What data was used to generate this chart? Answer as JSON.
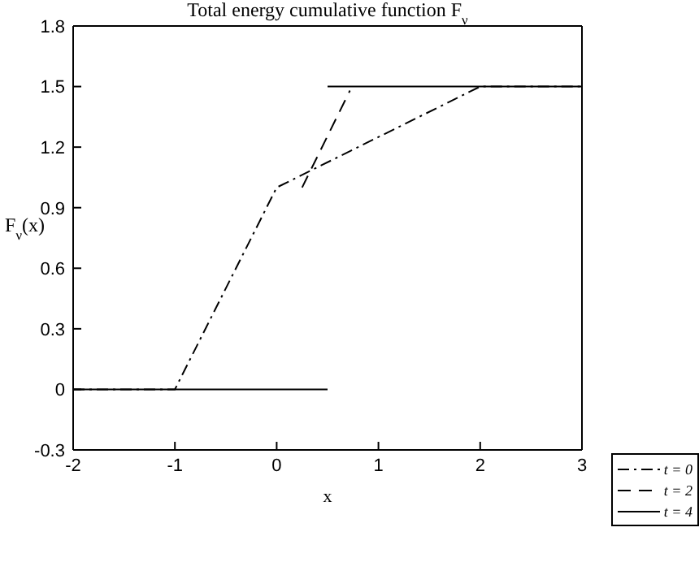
{
  "chart_data": {
    "type": "line",
    "title": "Total energy cumulative function F$_{ν}$",
    "xlabel": "x",
    "ylabel": "F$_{ν}$(x)",
    "series": [
      {
        "name": "t = 0",
        "color": "#000000",
        "line_style": "dashdot",
        "x": [
          -2,
          -1,
          0,
          2,
          3
        ],
        "values": [
          0,
          0,
          1.0,
          1.5,
          1.5
        ]
      },
      {
        "name": "t = 2",
        "color": "#000000",
        "line_style": "dashed",
        "x": [
          0.25,
          0.72
        ],
        "values": [
          1.0,
          1.48
        ]
      },
      {
        "name": "t = 4",
        "color": "#000000",
        "line_style": "solid",
        "x": [
          -2,
          0.5
        ],
        "values": [
          0,
          0
        ]
      },
      {
        "color": "#000000",
        "line_style": "solid",
        "x": [
          0.5,
          3
        ],
        "values": [
          1.5,
          1.5
        ]
      }
    ],
    "xlim": [
      -2,
      3
    ],
    "xticks": [
      -2,
      -1,
      0,
      1,
      2,
      3
    ],
    "ylim": [
      -0.3,
      1.8
    ],
    "yticks": [
      -0.3,
      0,
      0.3,
      0.6,
      0.9,
      1.2,
      1.5,
      1.8
    ],
    "legend": "bottom right",
    "marker": "none"
  }
}
